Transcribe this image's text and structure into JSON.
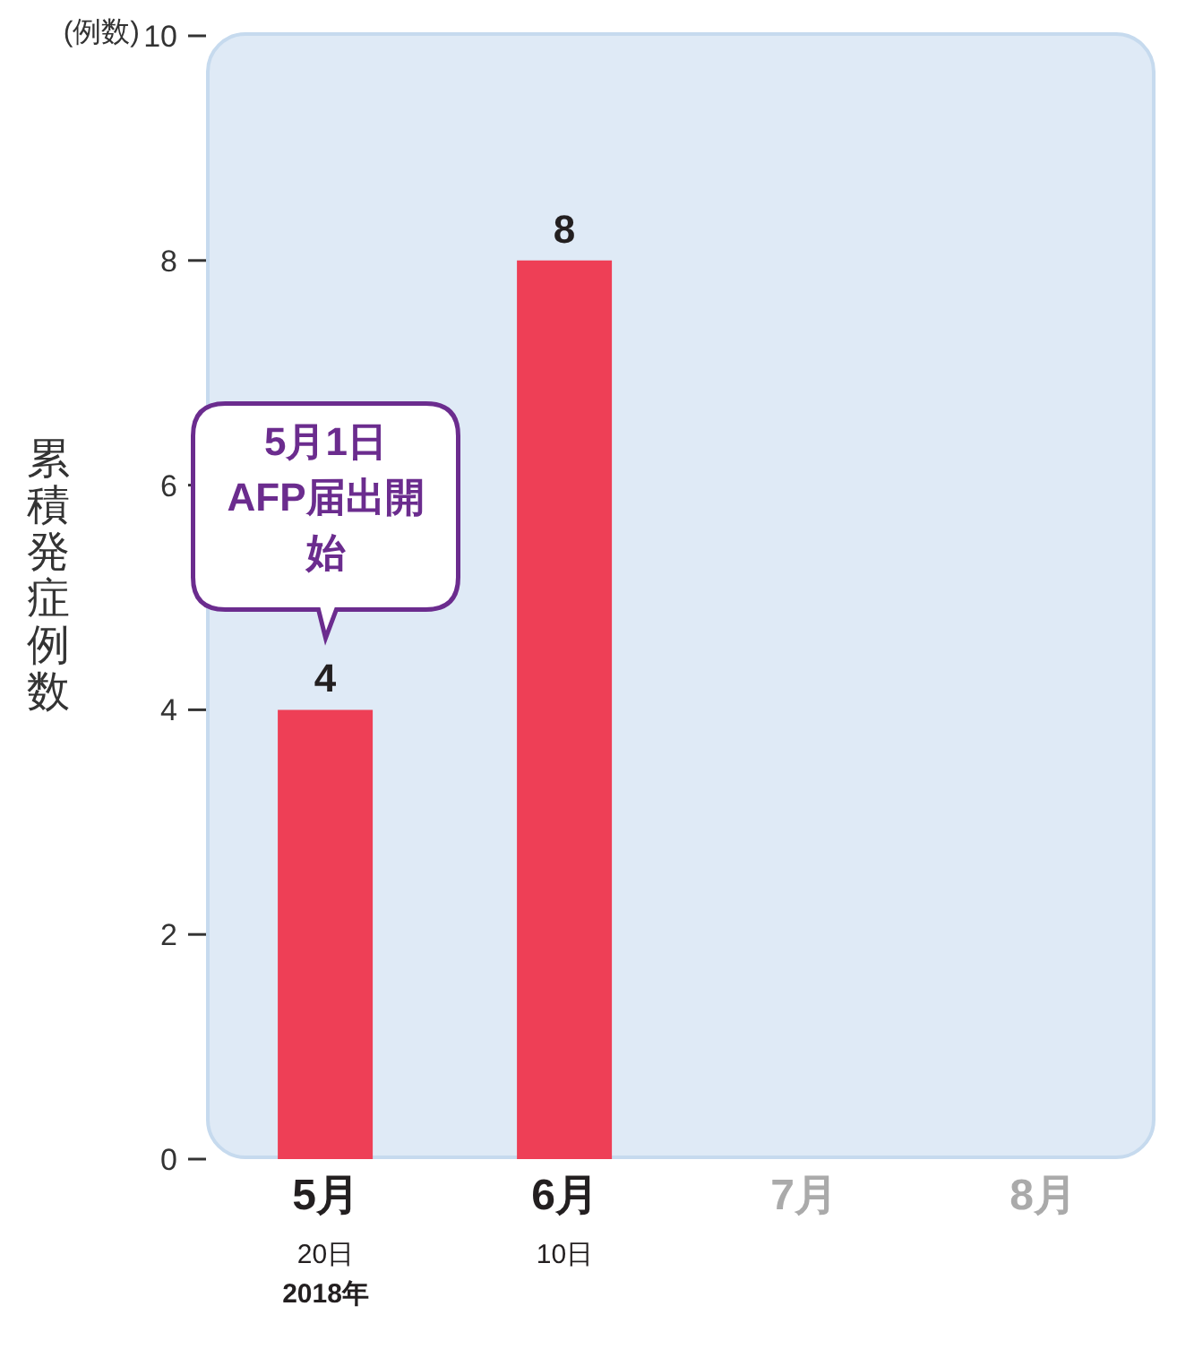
{
  "chart_data": {
    "type": "bar",
    "ylabel": "累積発症例数",
    "categories": [
      "5月\n20日\n2018年",
      "6月\n10日",
      "7月",
      "8月"
    ],
    "values": [
      4,
      8,
      null,
      null
    ],
    "color": "#ee3f56",
    "ylim": [
      0,
      10
    ],
    "yticks": [
      0,
      2,
      4,
      6,
      8,
      10
    ],
    "grid": false,
    "legend": false,
    "data_labels": true,
    "annotations": [
      "(例数)",
      "5月1日\nAFP届出開始"
    ]
  }
}
